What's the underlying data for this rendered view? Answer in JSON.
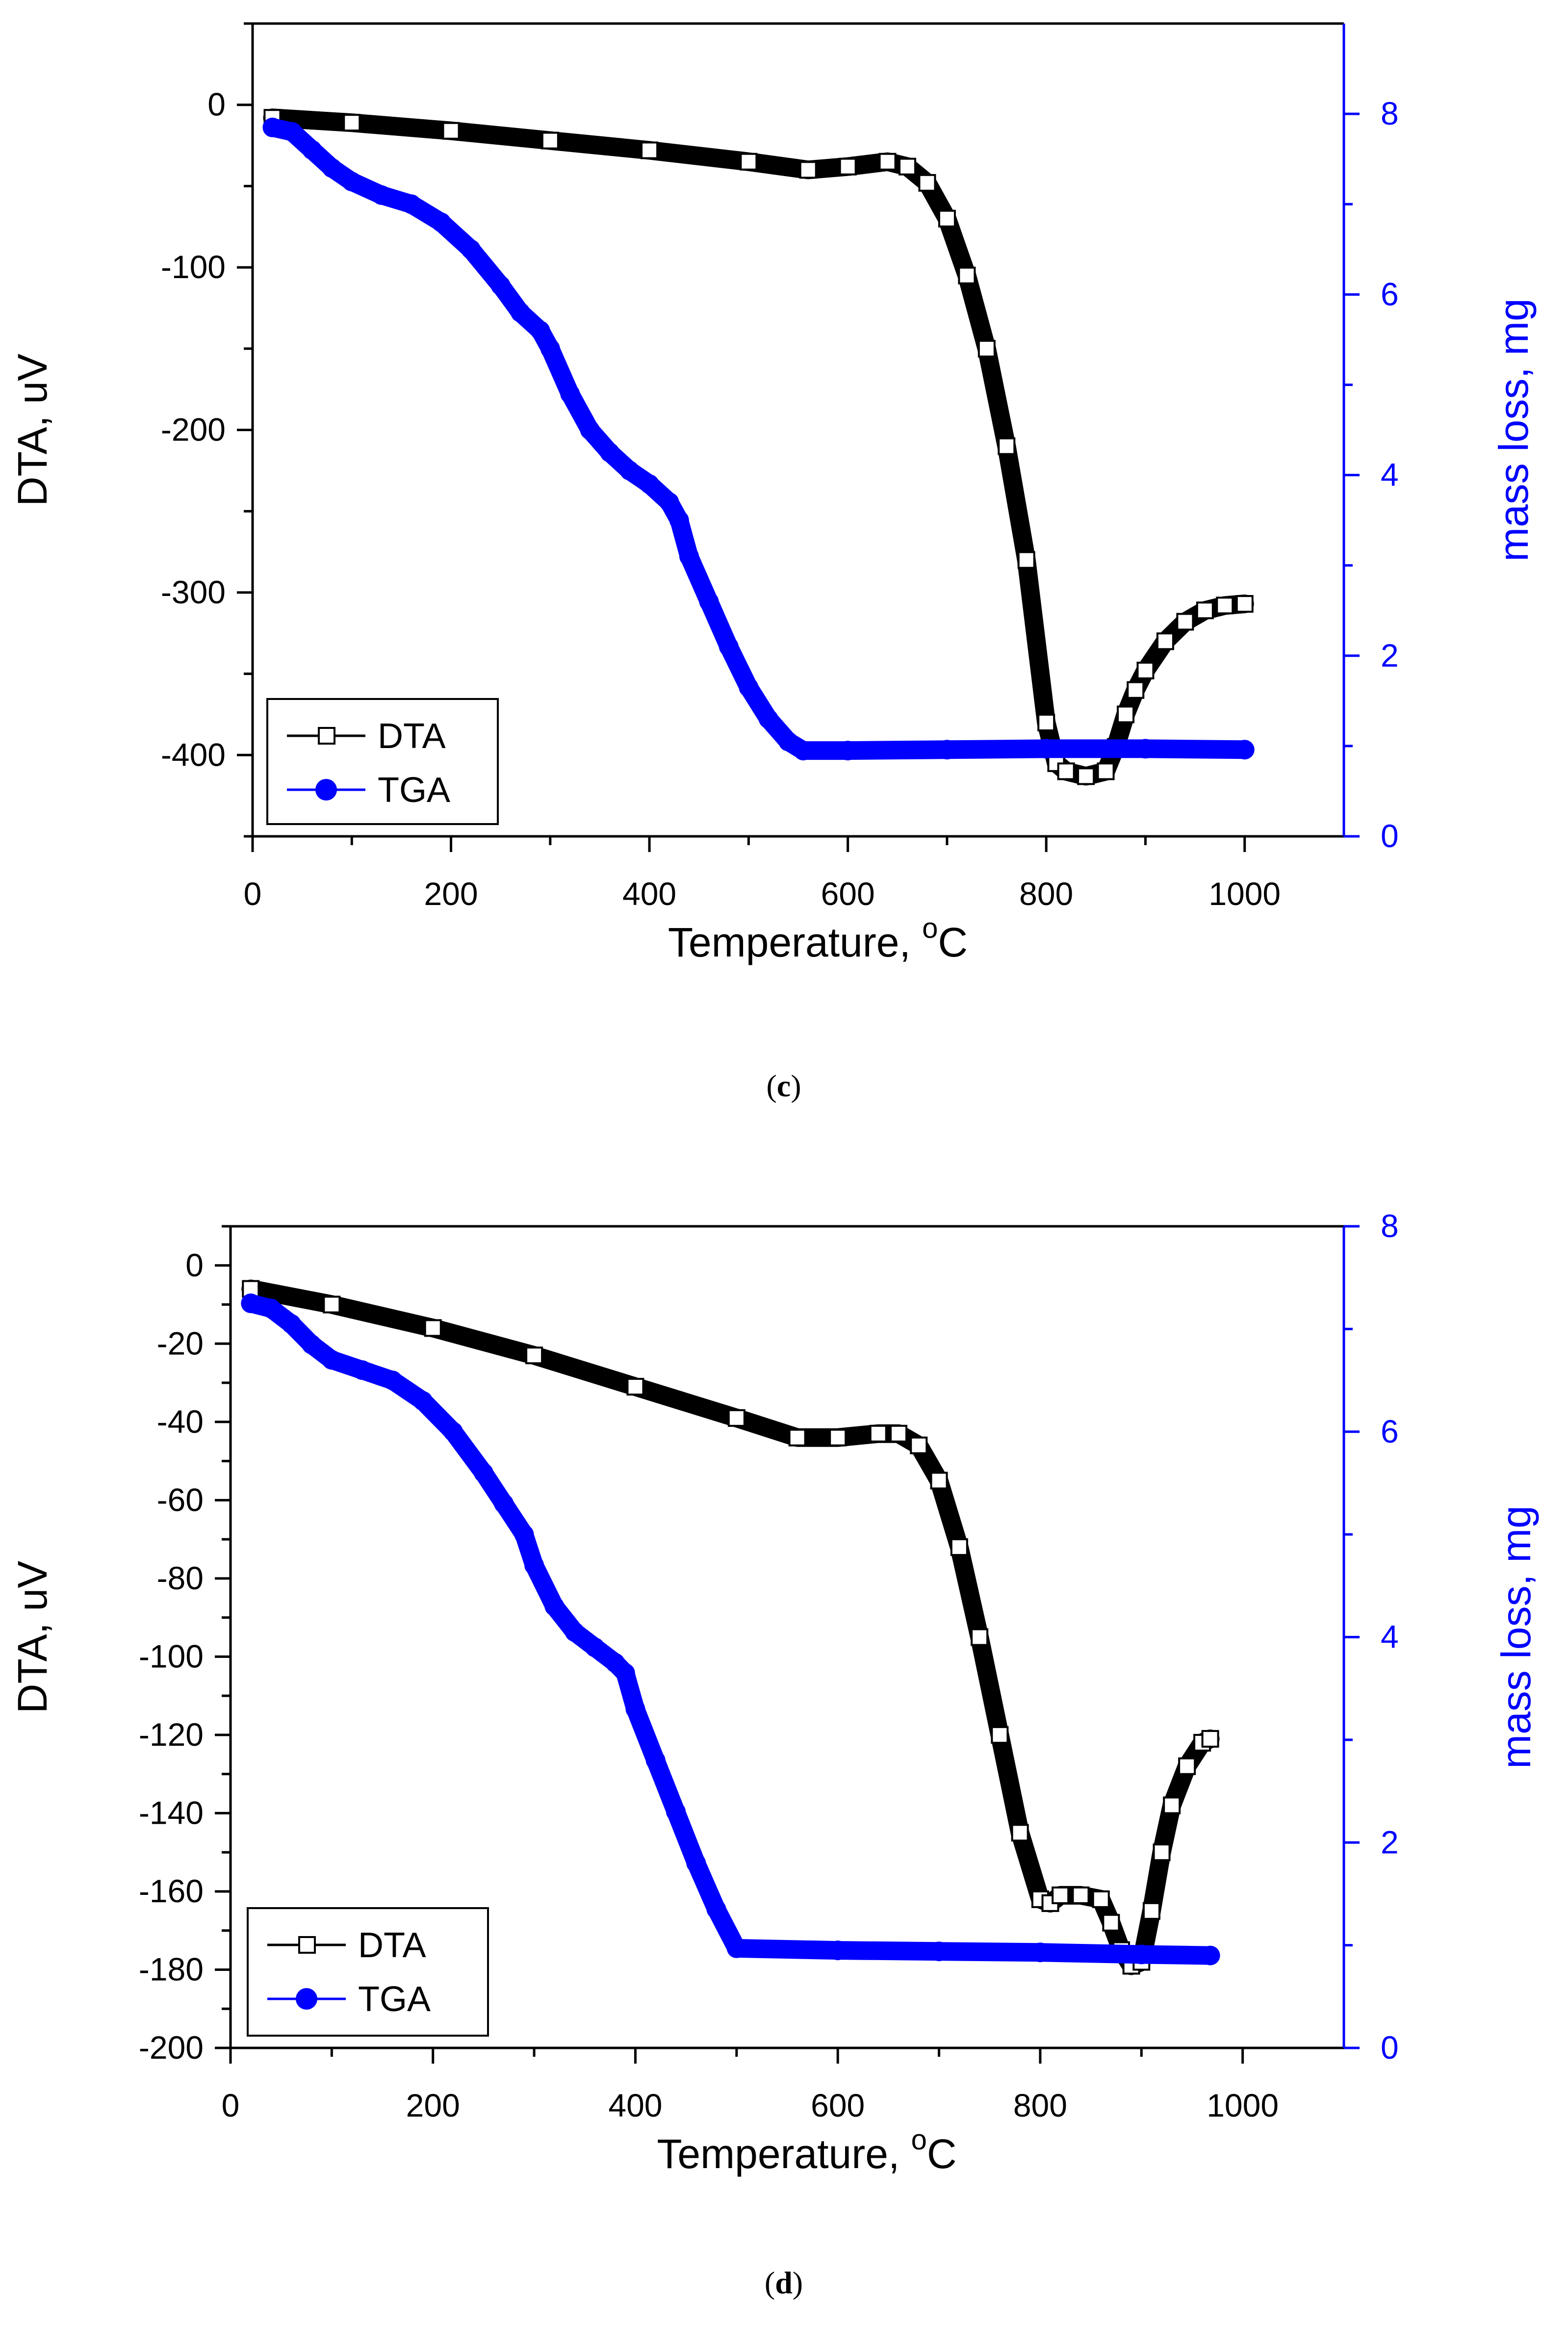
{
  "colors": {
    "dta": "#000000",
    "tga": "#0000ff",
    "axis": "#000000"
  },
  "chart_data": [
    {
      "panel": "c",
      "type": "line",
      "caption_letter": "c",
      "xlabel": "Temperature, ",
      "xlabel_sup": "o",
      "xlabel_unit": "C",
      "ylabel": "DTA, uV",
      "y2label": "mass loss, mg",
      "xlim": [
        0,
        1100
      ],
      "ylim": [
        -450,
        50
      ],
      "y2lim": [
        0,
        9
      ],
      "xticks": [
        0,
        200,
        400,
        600,
        800,
        1000
      ],
      "yticks": [
        0,
        -100,
        -200,
        -300,
        -400
      ],
      "y2ticks": [
        0,
        2,
        4,
        6,
        8
      ],
      "legend": {
        "location": "bottom-left",
        "entries": [
          {
            "name": "DTA",
            "marker": "open-square",
            "color": "#000000"
          },
          {
            "name": "TGA",
            "marker": "filled-circle",
            "color": "#0000ff"
          }
        ]
      },
      "series": [
        {
          "name": "DTA",
          "axis": "left",
          "x": [
            20,
            100,
            200,
            300,
            400,
            500,
            560,
            600,
            640,
            660,
            680,
            700,
            720,
            740,
            760,
            780,
            800,
            810,
            820,
            840,
            860,
            870,
            880,
            890,
            900,
            920,
            940,
            960,
            980,
            1000
          ],
          "y": [
            -8,
            -11,
            -16,
            -22,
            -28,
            -35,
            -40,
            -38,
            -35,
            -38,
            -48,
            -70,
            -105,
            -150,
            -210,
            -280,
            -380,
            -405,
            -410,
            -413,
            -410,
            -395,
            -375,
            -360,
            -348,
            -330,
            -318,
            -311,
            -308,
            -307
          ]
        },
        {
          "name": "TGA",
          "axis": "right",
          "x": [
            20,
            40,
            60,
            80,
            100,
            130,
            160,
            190,
            220,
            250,
            270,
            290,
            300,
            320,
            340,
            360,
            380,
            400,
            420,
            430,
            440,
            460,
            480,
            500,
            520,
            540,
            555,
            600,
            700,
            800,
            900,
            1000
          ],
          "y": [
            7.85,
            7.8,
            7.6,
            7.4,
            7.25,
            7.1,
            7.0,
            6.8,
            6.5,
            6.1,
            5.8,
            5.6,
            5.4,
            4.9,
            4.5,
            4.25,
            4.05,
            3.9,
            3.7,
            3.5,
            3.1,
            2.6,
            2.1,
            1.65,
            1.3,
            1.05,
            0.95,
            0.95,
            0.96,
            0.97,
            0.97,
            0.96
          ]
        }
      ]
    },
    {
      "panel": "d",
      "type": "line",
      "caption_letter": "d",
      "xlabel": "Temperature, ",
      "xlabel_sup": "o",
      "xlabel_unit": "C",
      "ylabel": "DTA, uV",
      "y2label": "mass loss, mg",
      "xlim": [
        0,
        1100
      ],
      "ylim": [
        -200,
        10
      ],
      "y2lim": [
        0,
        8
      ],
      "xticks": [
        0,
        200,
        400,
        600,
        800,
        1000
      ],
      "yticks": [
        0,
        -20,
        -40,
        -60,
        -80,
        -100,
        -120,
        -140,
        -160,
        -180,
        -200
      ],
      "y2ticks": [
        0,
        2,
        4,
        6,
        8
      ],
      "legend": {
        "location": "bottom-left",
        "entries": [
          {
            "name": "DTA",
            "marker": "open-square",
            "color": "#000000"
          },
          {
            "name": "TGA",
            "marker": "filled-circle",
            "color": "#0000ff"
          }
        ]
      },
      "series": [
        {
          "name": "DTA",
          "axis": "left",
          "x": [
            20,
            100,
            200,
            300,
            400,
            500,
            560,
            600,
            640,
            660,
            680,
            700,
            720,
            740,
            760,
            780,
            800,
            810,
            820,
            840,
            860,
            870,
            880,
            890,
            900,
            910,
            920,
            930,
            945,
            960,
            968
          ],
          "y": [
            -6,
            -10,
            -16,
            -23,
            -31,
            -39,
            -44,
            -44,
            -43,
            -43,
            -46,
            -55,
            -72,
            -95,
            -120,
            -145,
            -162,
            -163,
            -161,
            -161,
            -162,
            -168,
            -175,
            -179,
            -178,
            -165,
            -150,
            -138,
            -128,
            -122,
            -121
          ]
        },
        {
          "name": "TGA",
          "axis": "right",
          "x": [
            20,
            40,
            60,
            80,
            100,
            130,
            160,
            190,
            220,
            250,
            270,
            290,
            300,
            320,
            340,
            360,
            380,
            390,
            400,
            420,
            440,
            460,
            480,
            500,
            600,
            700,
            800,
            900,
            968
          ],
          "y": [
            7.25,
            7.2,
            7.05,
            6.85,
            6.7,
            6.6,
            6.5,
            6.3,
            6.0,
            5.6,
            5.3,
            5.0,
            4.7,
            4.3,
            4.05,
            3.9,
            3.75,
            3.65,
            3.3,
            2.8,
            2.3,
            1.8,
            1.35,
            0.97,
            0.95,
            0.94,
            0.93,
            0.91,
            0.9
          ]
        }
      ]
    }
  ]
}
